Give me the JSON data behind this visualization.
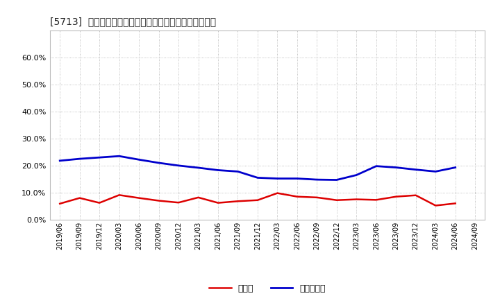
{
  "title": "[5713]  現預金、有利子負債の総資産に対する比率の推移",
  "ylim": [
    0.0,
    0.7
  ],
  "yticks": [
    0.0,
    0.1,
    0.2,
    0.3,
    0.4,
    0.5,
    0.6
  ],
  "legend_labels": [
    "現預金",
    "有利子負債"
  ],
  "line_colors": [
    "#dd0000",
    "#0000cc"
  ],
  "background_color": "#ffffff",
  "plot_bg_color": "#ffffff",
  "grid_color": "#999999",
  "x_labels": [
    "2019/06",
    "2019/09",
    "2019/12",
    "2020/03",
    "2020/06",
    "2020/09",
    "2020/12",
    "2021/03",
    "2021/06",
    "2021/09",
    "2021/12",
    "2022/03",
    "2022/06",
    "2022/09",
    "2022/12",
    "2023/03",
    "2023/06",
    "2023/09",
    "2023/12",
    "2024/03",
    "2024/06",
    "2024/09"
  ],
  "cash_values": [
    0.059,
    0.08,
    0.062,
    0.091,
    0.08,
    0.07,
    0.063,
    0.082,
    0.062,
    0.068,
    0.072,
    0.098,
    0.085,
    0.082,
    0.072,
    0.075,
    0.073,
    0.085,
    0.09,
    0.052,
    0.06,
    null
  ],
  "debt_values": [
    0.218,
    0.225,
    0.23,
    0.235,
    0.222,
    0.21,
    0.2,
    0.192,
    0.183,
    0.178,
    0.155,
    0.152,
    0.152,
    0.148,
    0.147,
    0.165,
    0.198,
    0.193,
    0.185,
    0.178,
    0.193,
    null
  ]
}
